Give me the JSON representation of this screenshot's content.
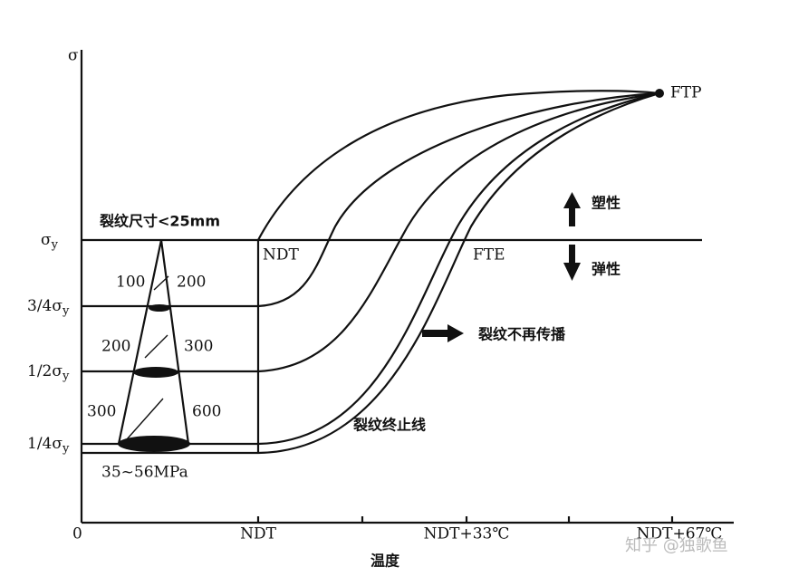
{
  "axes": {
    "y_label": "σ",
    "x_label": "温度",
    "origin": "0",
    "y_levels": [
      {
        "text": "σ",
        "sub": "y"
      },
      {
        "text": "3/4σ",
        "sub": "y"
      },
      {
        "text": "1/2σ",
        "sub": "y"
      },
      {
        "text": "1/4σ",
        "sub": "y"
      }
    ],
    "x_ticks": [
      "NDT",
      "NDT+33℃",
      "NDT+67℃"
    ]
  },
  "annotations": {
    "ftp": "FTP",
    "crack_size": "裂纹尺寸<25mm",
    "ndt": "NDT",
    "fte": "FTE",
    "plastic": "塑性",
    "elastic": "弹性",
    "no_propagation": "裂纹不再传播",
    "arrest_line": "裂纹终止线",
    "cone_left": [
      "100",
      "200",
      "300"
    ],
    "cone_right": [
      "200",
      "300",
      "600"
    ],
    "stress_range": "35~56MPa"
  },
  "watermark": "知乎 @独歌鱼"
}
